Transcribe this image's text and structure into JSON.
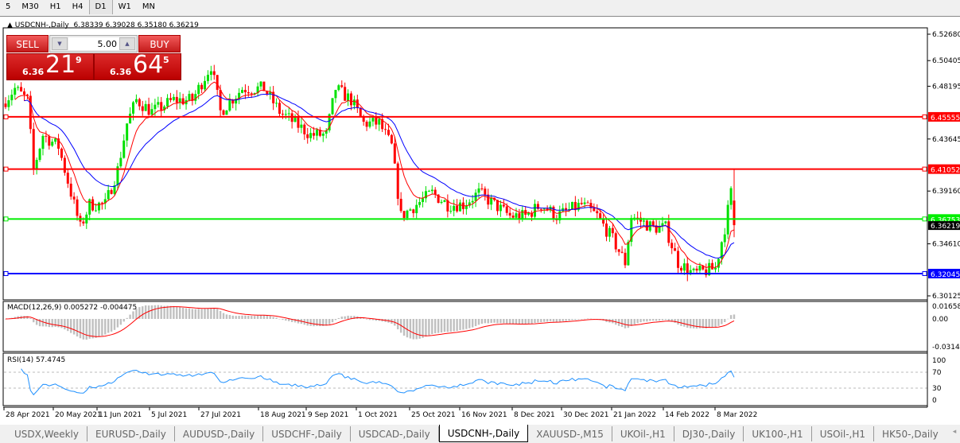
{
  "timeframes": [
    {
      "label": "5",
      "active": false
    },
    {
      "label": "M30",
      "active": false
    },
    {
      "label": "H1",
      "active": false
    },
    {
      "label": "H4",
      "active": false
    },
    {
      "label": "D1",
      "active": true
    },
    {
      "label": "W1",
      "active": false
    },
    {
      "label": "MN",
      "active": false
    }
  ],
  "chart": {
    "symbol_title": "USDCNH-,Daily",
    "ohlc": "6.38339 6.39028 6.35180 6.36219"
  },
  "trade_panel": {
    "sell_label": "SELL",
    "buy_label": "BUY",
    "lot": "5.00",
    "sell_price": {
      "prefix": "6.36",
      "big": "21",
      "sup": "9"
    },
    "buy_price": {
      "prefix": "6.36",
      "big": "64",
      "sup": "5"
    }
  },
  "price_axis": {
    "min": 6.30125,
    "max": 6.5268,
    "ticks": [
      "6.52680",
      "6.50405",
      "6.48195",
      "6.43645",
      "6.39160",
      "6.34610",
      "6.30125"
    ],
    "current_price": "6.36219"
  },
  "horizontal_lines": [
    {
      "value": "6.45555",
      "color": "#ff0000"
    },
    {
      "value": "6.41052",
      "color": "#ff0000"
    },
    {
      "value": "6.36753",
      "color": "#00ee00"
    },
    {
      "value": "6.32045",
      "color": "#0000ff"
    }
  ],
  "colors": {
    "bull": "#00e000",
    "bear": "#ff0000",
    "ma_fast": "#ff0000",
    "ma_slow": "#0000ff",
    "macd_hist": "#c0c0c0",
    "macd_signal": "#ff0000",
    "rsi": "#1e90ff"
  },
  "price_path_approx": [
    [
      0,
      6.47
    ],
    [
      3,
      6.48
    ],
    [
      7,
      6.47
    ],
    [
      9,
      6.41
    ],
    [
      12,
      6.44
    ],
    [
      17,
      6.43
    ],
    [
      21,
      6.39
    ],
    [
      24,
      6.36
    ],
    [
      27,
      6.38
    ],
    [
      32,
      6.38
    ],
    [
      36,
      6.41
    ],
    [
      39,
      6.45
    ],
    [
      42,
      6.47
    ],
    [
      47,
      6.46
    ],
    [
      54,
      6.47
    ],
    [
      60,
      6.47
    ],
    [
      66,
      6.5
    ],
    [
      69,
      6.46
    ],
    [
      76,
      6.48
    ],
    [
      83,
      6.48
    ],
    [
      88,
      6.46
    ],
    [
      93,
      6.45
    ],
    [
      98,
      6.44
    ],
    [
      103,
      6.44
    ],
    [
      106,
      6.48
    ],
    [
      111,
      6.47
    ],
    [
      115,
      6.45
    ],
    [
      120,
      6.45
    ],
    [
      124,
      6.43
    ],
    [
      127,
      6.37
    ],
    [
      132,
      6.38
    ],
    [
      137,
      6.39
    ],
    [
      142,
      6.38
    ],
    [
      147,
      6.38
    ],
    [
      152,
      6.39
    ],
    [
      157,
      6.38
    ],
    [
      162,
      6.37
    ],
    [
      167,
      6.37
    ],
    [
      172,
      6.38
    ],
    [
      177,
      6.37
    ],
    [
      185,
      6.38
    ],
    [
      190,
      6.37
    ],
    [
      195,
      6.35
    ],
    [
      199,
      6.33
    ],
    [
      201,
      6.37
    ],
    [
      208,
      6.36
    ],
    [
      212,
      6.36
    ],
    [
      216,
      6.33
    ],
    [
      221,
      6.32
    ],
    [
      228,
      6.325
    ],
    [
      231,
      6.36
    ],
    [
      233,
      6.39
    ],
    [
      234,
      6.362
    ]
  ],
  "macd": {
    "label": "MACD(12,26,9) 0.005272 -0.004475",
    "ticks": [
      "0.016586",
      "0.00",
      "-0.03142"
    ]
  },
  "rsi": {
    "label": "RSI(14) 57.4745",
    "ticks": [
      "100",
      "70",
      "30",
      "0"
    ]
  },
  "time_axis": [
    "28 Apr 2021",
    "20 May 2021",
    "11 Jun 2021",
    "5 Jul 2021",
    "27 Jul 2021",
    "18 Aug 2021",
    "9 Sep 2021",
    "1 Oct 2021",
    "25 Oct 2021",
    "16 Nov 2021",
    "8 Dec 2021",
    "30 Dec 2021",
    "21 Jan 2022",
    "14 Feb 2022",
    "8 Mar 2022"
  ],
  "tabs": [
    {
      "label": "USDX,Weekly",
      "active": false
    },
    {
      "label": "EURUSD-,Daily",
      "active": false
    },
    {
      "label": "AUDUSD-,Daily",
      "active": false
    },
    {
      "label": "USDCHF-,Daily",
      "active": false
    },
    {
      "label": "USDCAD-,Daily",
      "active": false
    },
    {
      "label": "USDCNH-,Daily",
      "active": true
    },
    {
      "label": "XAUUSD-,M15",
      "active": false
    },
    {
      "label": "UKOil-,H1",
      "active": false
    },
    {
      "label": "DJ30-,Daily",
      "active": false
    },
    {
      "label": "UK100-,H1",
      "active": false
    },
    {
      "label": "USOil-,H1",
      "active": false
    },
    {
      "label": "HK50-,Daily",
      "active": false
    }
  ]
}
